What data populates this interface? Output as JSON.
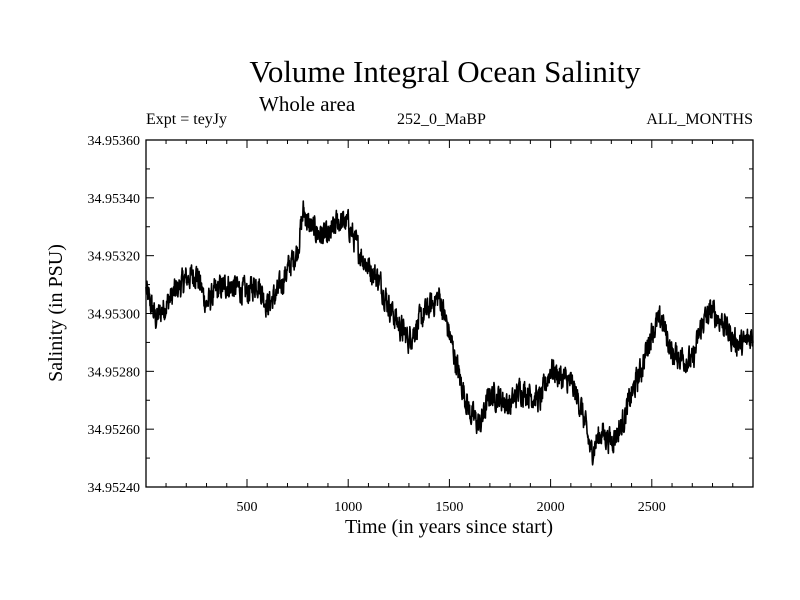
{
  "header": {
    "title": "Volume Integral Ocean Salinity",
    "subtitle": "Whole area",
    "expt": "Expt = teyJy",
    "run": "252_0_MaBP",
    "months": "ALL_MONTHS"
  },
  "chart_data": {
    "type": "line",
    "title": "Volume Integral Ocean Salinity",
    "subtitle": "Whole area",
    "xlabel": "Time (in years since start)",
    "ylabel": "Salinity (in PSU)",
    "xlim": [
      1,
      3000
    ],
    "ylim": [
      34.9524,
      34.9536
    ],
    "xticks": [
      500,
      1000,
      1500,
      2000,
      2500
    ],
    "xtick_labels": [
      "500",
      "1000",
      "1500",
      "2000",
      "2500"
    ],
    "yticks": [
      34.9524,
      34.9526,
      34.9528,
      34.953,
      34.9532,
      34.9534,
      34.9536
    ],
    "ytick_labels": [
      "34.95240",
      "34.95260",
      "34.95280",
      "34.95300",
      "34.95320",
      "34.95340",
      "34.95360"
    ],
    "grid": false,
    "series": [
      {
        "name": "Salinity",
        "color": "#000000",
        "x": [
          1,
          50,
          100,
          150,
          200,
          250,
          300,
          350,
          400,
          450,
          500,
          550,
          600,
          650,
          700,
          750,
          780,
          800,
          850,
          900,
          950,
          1000,
          1050,
          1100,
          1150,
          1200,
          1250,
          1300,
          1350,
          1400,
          1450,
          1500,
          1550,
          1600,
          1650,
          1700,
          1750,
          1800,
          1850,
          1900,
          1950,
          2000,
          2050,
          2100,
          2150,
          2200,
          2250,
          2300,
          2350,
          2400,
          2450,
          2500,
          2550,
          2600,
          2650,
          2700,
          2750,
          2800,
          2850,
          2900,
          2950,
          3000
        ],
        "y": [
          34.95308,
          34.95298,
          34.95303,
          34.95308,
          34.95312,
          34.95314,
          34.95303,
          34.95308,
          34.9531,
          34.95309,
          34.95307,
          34.95311,
          34.95303,
          34.95307,
          34.95315,
          34.95322,
          34.95336,
          34.95331,
          34.95328,
          34.95326,
          34.95332,
          34.95331,
          34.95322,
          34.95316,
          34.95312,
          34.95303,
          34.95296,
          34.95291,
          34.95297,
          34.95302,
          34.95306,
          34.95293,
          34.95278,
          34.95266,
          34.95261,
          34.95272,
          34.95271,
          34.95268,
          34.95274,
          34.95272,
          34.9527,
          34.95281,
          34.95278,
          34.95276,
          34.95268,
          34.95252,
          34.95259,
          34.95256,
          34.95261,
          34.95272,
          34.95281,
          34.95294,
          34.95298,
          34.95286,
          34.95285,
          34.95283,
          34.95297,
          34.95301,
          34.95297,
          34.95291,
          34.95289,
          34.95293
        ]
      }
    ]
  }
}
